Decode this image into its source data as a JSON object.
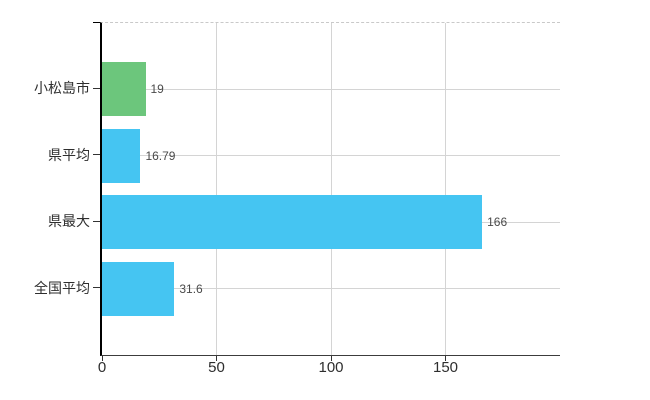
{
  "chart_data": {
    "type": "bar",
    "orientation": "horizontal",
    "categories": [
      "小松島市",
      "県平均",
      "県最大",
      "全国平均"
    ],
    "values": [
      19,
      16.79,
      166,
      31.6
    ],
    "data_labels": [
      "19",
      "16.79",
      "166",
      "31.6"
    ],
    "bar_colors": [
      "#6cc67c",
      "#45c5f2",
      "#45c5f2",
      "#45c5f2"
    ],
    "x_tick_labels": [
      "0",
      "50",
      "100",
      "150"
    ],
    "x_tick_values": [
      0,
      50,
      100,
      150
    ],
    "xlim": [
      0,
      200
    ],
    "grid": true,
    "legend": false
  },
  "colors": {
    "bar_green": "#6cc67c",
    "bar_blue": "#45c5f2",
    "grid": "#d4d4d4",
    "plot_top_border": "#c9c9c9",
    "axis": "#000000",
    "tick_text": "#2e2e2e",
    "value_text": "#4a4a4a",
    "background": "#ffffff"
  }
}
